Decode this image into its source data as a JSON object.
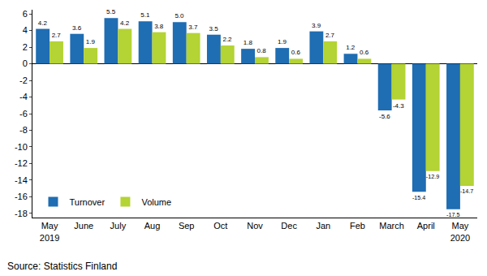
{
  "chart_data": {
    "type": "bar",
    "categories": [
      "May 2019",
      "June",
      "July",
      "Aug",
      "Sep",
      "Oct",
      "Nov",
      "Dec",
      "Jan",
      "Feb",
      "March",
      "April",
      "May 2020"
    ],
    "series": [
      {
        "name": "Turnover",
        "color": "#1f6db3",
        "values": [
          4.2,
          3.6,
          5.5,
          5.1,
          5.0,
          3.5,
          1.8,
          1.9,
          3.9,
          1.2,
          -5.6,
          -15.4,
          -17.5
        ]
      },
      {
        "name": "Volume",
        "color": "#b4d334",
        "values": [
          2.7,
          1.9,
          4.2,
          3.8,
          3.7,
          2.2,
          0.8,
          0.6,
          2.7,
          0.6,
          -4.3,
          -12.9,
          -14.7
        ]
      }
    ],
    "ylim": [
      -18.5,
      6.5
    ],
    "yticks": [
      -18,
      -16,
      -14,
      -12,
      -10,
      -8,
      -6,
      -4,
      -2,
      0,
      2,
      4,
      6
    ],
    "grid": false,
    "data_labels": true,
    "legend": "bottom left",
    "source": "Source: Statistics Finland"
  }
}
